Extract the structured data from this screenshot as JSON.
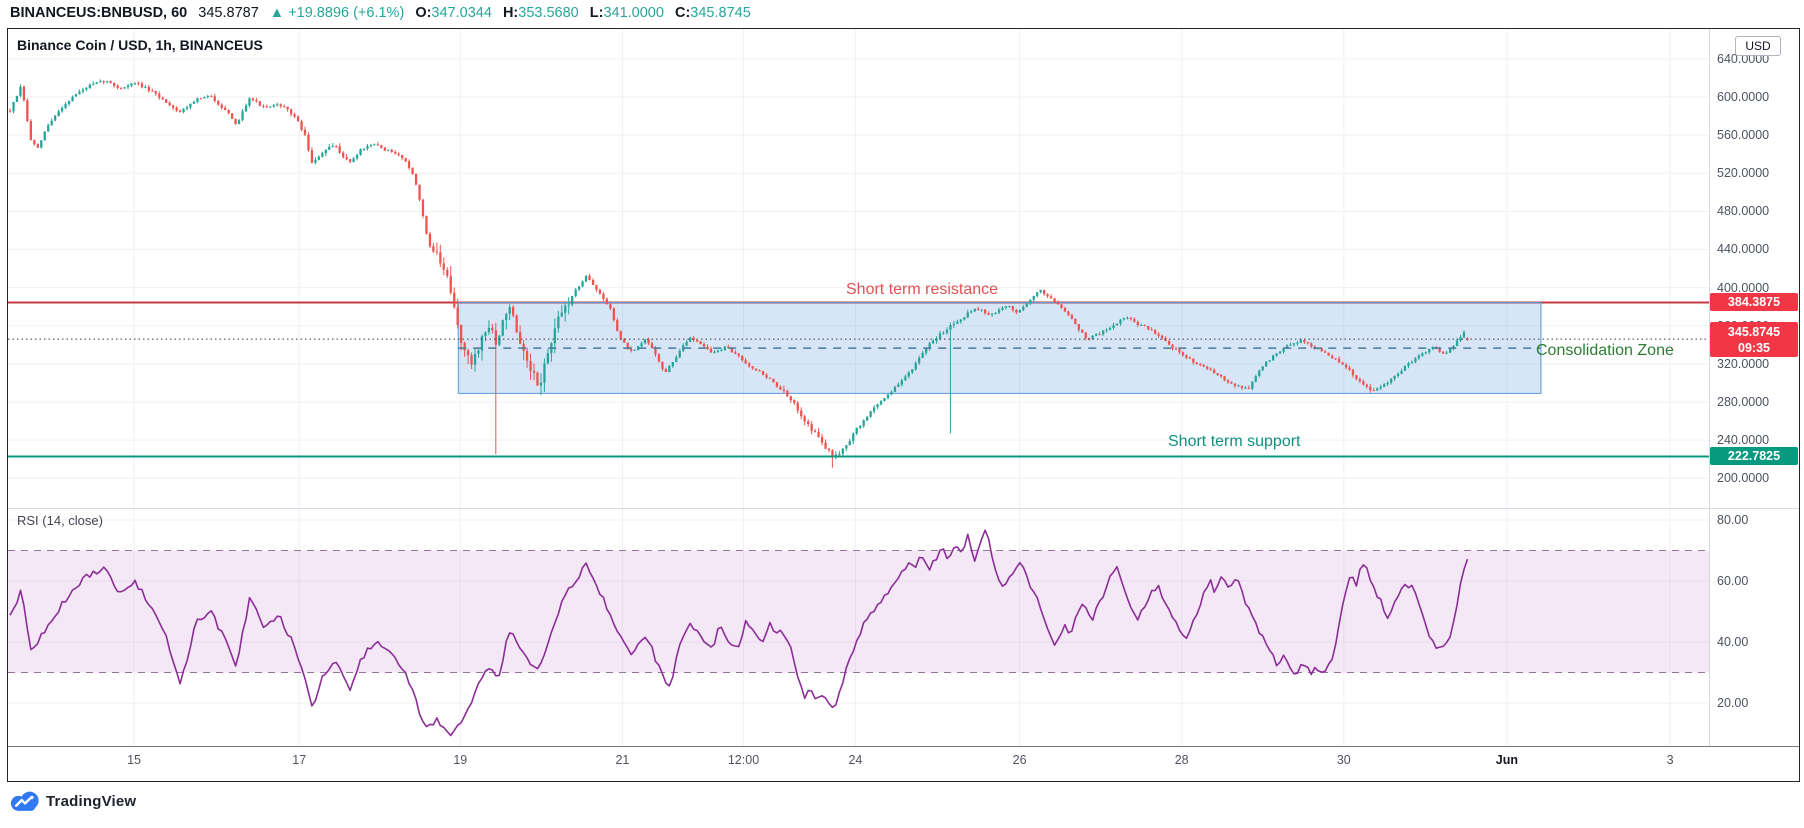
{
  "header": {
    "symbol": "BINANCEUS:BNBUSD, 60",
    "last": "345.8787",
    "arrow_up": "▲",
    "change": "+19.8896 (+6.1%)",
    "o_label": "O:",
    "o": "347.0344",
    "h_label": "H:",
    "h": "353.5680",
    "l_label": "L:",
    "l": "341.0000",
    "c_label": "C:",
    "c": "345.8745"
  },
  "chart": {
    "title": "Binance Coin / USD, 1h, BINANCEUS",
    "currency_button": "USD"
  },
  "rsi_label": "RSI (14, close)",
  "annotations": {
    "resistance": "Short term resistance",
    "zone": "Consolidation Zone",
    "support": "Short term support"
  },
  "badges": {
    "resistance": "384.3875",
    "last_price": "345.8745",
    "countdown": "09:35",
    "support": "222.7825"
  },
  "footer": {
    "logo": "TradingView"
  },
  "colors": {
    "dark": "#131722",
    "teal": "#26a69a",
    "candle_up": "#26a69a",
    "candle_down": "#ef5350",
    "badge_red": "#f23645",
    "badge_teal": "#089981",
    "resistance_line": "#c13a41",
    "support_line": "#089981",
    "resistance_text": "#e05252",
    "support_text": "#0f9182",
    "zone_text": "#2e7d32",
    "zone_fill": "rgba(90,156,222,0.25)",
    "zone_border": "#569bd8",
    "median_dash": "#4a7a9b",
    "last_price_dot": "#3a3e46",
    "rsi_line": "#8c2d98",
    "rsi_band": "rgba(170,80,190,0.13)",
    "rsi_band_border": "#96739b",
    "grid": "#f0f1f5",
    "logo_blue": "#3179f0"
  },
  "chart_data": {
    "type": "candlestick",
    "symbol": "BNBUSD",
    "interval": "1h",
    "price_pane": {
      "ylim": [
        168,
        671
      ]
    },
    "rsi_pane": {
      "ylim": [
        6,
        84
      ]
    },
    "price_axis_ticks": [
      {
        "label": "640.0000",
        "value": 640
      },
      {
        "label": "600.0000",
        "value": 600
      },
      {
        "label": "560.0000",
        "value": 560
      },
      {
        "label": "520.0000",
        "value": 520
      },
      {
        "label": "480.0000",
        "value": 480
      },
      {
        "label": "440.0000",
        "value": 440
      },
      {
        "label": "400.0000",
        "value": 400
      },
      {
        "label": "360.0000",
        "value": 360
      },
      {
        "label": "320.0000",
        "value": 320
      },
      {
        "label": "280.0000",
        "value": 280
      },
      {
        "label": "240.0000",
        "value": 240
      },
      {
        "label": "200.0000",
        "value": 200
      }
    ],
    "rsi_axis_ticks": [
      {
        "label": "80.00",
        "value": 80
      },
      {
        "label": "60.00",
        "value": 60
      },
      {
        "label": "40.00",
        "value": 40
      },
      {
        "label": "20.00",
        "value": 20
      }
    ],
    "time_axis": [
      {
        "label": "15",
        "fx": 0.0741
      },
      {
        "label": "17",
        "fx": 0.1712
      },
      {
        "label": "19",
        "fx": 0.2659
      },
      {
        "label": "21",
        "fx": 0.3612
      },
      {
        "label": "12:00",
        "fx": 0.4324
      },
      {
        "label": "24",
        "fx": 0.4982
      },
      {
        "label": "26",
        "fx": 0.5947
      },
      {
        "label": "28",
        "fx": 0.69
      },
      {
        "label": "30",
        "fx": 0.7853
      },
      {
        "label": "Jun",
        "fx": 0.8812,
        "emphasis": true
      },
      {
        "label": "3",
        "fx": 0.9771
      }
    ],
    "levels": {
      "resistance": 384.3875,
      "support": 222.7825,
      "last_price": 345.8745,
      "zone_median": 336.5
    },
    "zone": {
      "fx0": 0.2647,
      "fx1": 0.9012,
      "top": 384.3875,
      "bottom": 289
    },
    "candles": {
      "count": 421,
      "first_fx": 0.0012,
      "last_fx": 0.858,
      "base_vol": 4.5,
      "last_open": 347.0344,
      "last_close": 345.8745
    },
    "vol_regions": [
      [
        0.25,
        0.33,
        20
      ],
      [
        0.172,
        0.2,
        7
      ],
      [
        0.455,
        0.5,
        8
      ],
      [
        0.545,
        0.565,
        6
      ],
      [
        0.78,
        0.812,
        5
      ]
    ],
    "spikes": [
      {
        "fx": 0.2875,
        "low": 225
      },
      {
        "fx": 0.4845,
        "low": 211
      },
      {
        "fx": 0.555,
        "low": 247
      }
    ],
    "price_path": [
      [
        0.001,
        585
      ],
      [
        0.008,
        612
      ],
      [
        0.013,
        556
      ],
      [
        0.018,
        545
      ],
      [
        0.022,
        566
      ],
      [
        0.031,
        588
      ],
      [
        0.039,
        602
      ],
      [
        0.048,
        612
      ],
      [
        0.057,
        617
      ],
      [
        0.066,
        609
      ],
      [
        0.075,
        615
      ],
      [
        0.084,
        606
      ],
      [
        0.092,
        596
      ],
      [
        0.101,
        584
      ],
      [
        0.11,
        597
      ],
      [
        0.119,
        601
      ],
      [
        0.128,
        586
      ],
      [
        0.134,
        570
      ],
      [
        0.142,
        600
      ],
      [
        0.151,
        588
      ],
      [
        0.16,
        592
      ],
      [
        0.169,
        579
      ],
      [
        0.175,
        558
      ],
      [
        0.179,
        528
      ],
      [
        0.184,
        541
      ],
      [
        0.192,
        549
      ],
      [
        0.201,
        531
      ],
      [
        0.208,
        546
      ],
      [
        0.216,
        550
      ],
      [
        0.225,
        542
      ],
      [
        0.232,
        537
      ],
      [
        0.238,
        520
      ],
      [
        0.242,
        492
      ],
      [
        0.247,
        448
      ],
      [
        0.252,
        432
      ],
      [
        0.256,
        420
      ],
      [
        0.259,
        402
      ],
      [
        0.263,
        372
      ],
      [
        0.266,
        348
      ],
      [
        0.269,
        330
      ],
      [
        0.272,
        318
      ],
      [
        0.276,
        336
      ],
      [
        0.28,
        352
      ],
      [
        0.284,
        362
      ],
      [
        0.2875,
        332
      ],
      [
        0.291,
        368
      ],
      [
        0.294,
        382
      ],
      [
        0.298,
        360
      ],
      [
        0.301,
        336
      ],
      [
        0.307,
        312
      ],
      [
        0.312,
        296
      ],
      [
        0.316,
        322
      ],
      [
        0.32,
        346
      ],
      [
        0.325,
        372
      ],
      [
        0.331,
        390
      ],
      [
        0.336,
        402
      ],
      [
        0.34,
        414
      ],
      [
        0.345,
        400
      ],
      [
        0.35,
        388
      ],
      [
        0.354,
        378
      ],
      [
        0.36,
        346
      ],
      [
        0.367,
        331
      ],
      [
        0.375,
        346
      ],
      [
        0.381,
        330
      ],
      [
        0.386,
        309
      ],
      [
        0.394,
        331
      ],
      [
        0.401,
        348
      ],
      [
        0.407,
        342
      ],
      [
        0.414,
        331
      ],
      [
        0.422,
        337
      ],
      [
        0.429,
        329
      ],
      [
        0.436,
        318
      ],
      [
        0.444,
        309
      ],
      [
        0.451,
        299
      ],
      [
        0.459,
        284
      ],
      [
        0.466,
        268
      ],
      [
        0.473,
        250
      ],
      [
        0.479,
        237
      ],
      [
        0.4845,
        222
      ],
      [
        0.489,
        228
      ],
      [
        0.495,
        241
      ],
      [
        0.502,
        258
      ],
      [
        0.51,
        276
      ],
      [
        0.518,
        289
      ],
      [
        0.525,
        301
      ],
      [
        0.534,
        321
      ],
      [
        0.542,
        341
      ],
      [
        0.551,
        356
      ],
      [
        0.56,
        368
      ],
      [
        0.569,
        379
      ],
      [
        0.578,
        371
      ],
      [
        0.588,
        382
      ],
      [
        0.593,
        373
      ],
      [
        0.6,
        386
      ],
      [
        0.607,
        397
      ],
      [
        0.613,
        389
      ],
      [
        0.62,
        379
      ],
      [
        0.627,
        363
      ],
      [
        0.634,
        346
      ],
      [
        0.643,
        353
      ],
      [
        0.65,
        361
      ],
      [
        0.657,
        369
      ],
      [
        0.664,
        362
      ],
      [
        0.67,
        357
      ],
      [
        0.677,
        350
      ],
      [
        0.684,
        338
      ],
      [
        0.691,
        328
      ],
      [
        0.7,
        320
      ],
      [
        0.71,
        309
      ],
      [
        0.72,
        299
      ],
      [
        0.729,
        293
      ],
      [
        0.736,
        315
      ],
      [
        0.745,
        330
      ],
      [
        0.752,
        338
      ],
      [
        0.76,
        345
      ],
      [
        0.768,
        337
      ],
      [
        0.776,
        330
      ],
      [
        0.782,
        322
      ],
      [
        0.788,
        314
      ],
      [
        0.795,
        300
      ],
      [
        0.802,
        292
      ],
      [
        0.808,
        296
      ],
      [
        0.815,
        306
      ],
      [
        0.822,
        318
      ],
      [
        0.83,
        330
      ],
      [
        0.838,
        338
      ],
      [
        0.845,
        330
      ],
      [
        0.851,
        342
      ],
      [
        0.856,
        354
      ],
      [
        0.858,
        346
      ]
    ],
    "rsi": {
      "band": [
        30,
        70
      ],
      "path": [
        [
          0.001,
          48
        ],
        [
          0.008,
          57
        ],
        [
          0.013,
          38
        ],
        [
          0.022,
          43
        ],
        [
          0.031,
          52
        ],
        [
          0.039,
          58
        ],
        [
          0.048,
          62
        ],
        [
          0.057,
          64
        ],
        [
          0.066,
          56
        ],
        [
          0.075,
          60
        ],
        [
          0.084,
          51
        ],
        [
          0.092,
          43
        ],
        [
          0.101,
          27
        ],
        [
          0.106,
          36
        ],
        [
          0.11,
          46
        ],
        [
          0.119,
          50
        ],
        [
          0.128,
          40
        ],
        [
          0.134,
          31
        ],
        [
          0.142,
          54
        ],
        [
          0.151,
          45
        ],
        [
          0.16,
          48
        ],
        [
          0.169,
          38
        ],
        [
          0.175,
          28
        ],
        [
          0.179,
          18
        ],
        [
          0.184,
          28
        ],
        [
          0.192,
          34
        ],
        [
          0.201,
          24
        ],
        [
          0.208,
          35
        ],
        [
          0.216,
          40
        ],
        [
          0.225,
          36
        ],
        [
          0.232,
          32
        ],
        [
          0.238,
          24
        ],
        [
          0.242,
          16
        ],
        [
          0.247,
          12
        ],
        [
          0.252,
          15
        ],
        [
          0.256,
          12
        ],
        [
          0.261,
          10
        ],
        [
          0.266,
          14
        ],
        [
          0.272,
          19
        ],
        [
          0.278,
          28
        ],
        [
          0.284,
          33
        ],
        [
          0.288,
          26
        ],
        [
          0.292,
          38
        ],
        [
          0.296,
          44
        ],
        [
          0.301,
          38
        ],
        [
          0.307,
          33
        ],
        [
          0.312,
          30
        ],
        [
          0.316,
          38
        ],
        [
          0.32,
          45
        ],
        [
          0.325,
          52
        ],
        [
          0.331,
          58
        ],
        [
          0.336,
          62
        ],
        [
          0.34,
          66
        ],
        [
          0.345,
          59
        ],
        [
          0.35,
          54
        ],
        [
          0.354,
          49
        ],
        [
          0.36,
          42
        ],
        [
          0.367,
          36
        ],
        [
          0.375,
          43
        ],
        [
          0.381,
          34
        ],
        [
          0.386,
          28
        ],
        [
          0.39,
          25
        ],
        [
          0.394,
          38
        ],
        [
          0.401,
          46
        ],
        [
          0.407,
          42
        ],
        [
          0.414,
          38
        ],
        [
          0.418,
          45
        ],
        [
          0.422,
          42
        ],
        [
          0.429,
          37
        ],
        [
          0.434,
          47
        ],
        [
          0.438,
          44
        ],
        [
          0.444,
          40
        ],
        [
          0.448,
          46
        ],
        [
          0.451,
          42
        ],
        [
          0.455,
          44
        ],
        [
          0.459,
          40
        ],
        [
          0.463,
          31
        ],
        [
          0.466,
          25
        ],
        [
          0.469,
          22
        ],
        [
          0.4715,
          27
        ],
        [
          0.474,
          21.5
        ],
        [
          0.478,
          23
        ],
        [
          0.481,
          22
        ],
        [
          0.4845,
          17.5
        ],
        [
          0.487,
          20
        ],
        [
          0.491,
          28
        ],
        [
          0.495,
          34
        ],
        [
          0.499,
          40
        ],
        [
          0.503,
          46
        ],
        [
          0.508,
          50
        ],
        [
          0.513,
          53
        ],
        [
          0.517,
          56
        ],
        [
          0.521,
          60
        ],
        [
          0.525,
          63
        ],
        [
          0.529,
          66
        ],
        [
          0.533,
          64
        ],
        [
          0.537,
          69
        ],
        [
          0.541,
          64
        ],
        [
          0.545,
          67
        ],
        [
          0.549,
          71
        ],
        [
          0.553,
          66
        ],
        [
          0.557,
          73
        ],
        [
          0.561,
          68
        ],
        [
          0.5645,
          75
        ],
        [
          0.568,
          67
        ],
        [
          0.571,
          70
        ],
        [
          0.5745,
          77.5
        ],
        [
          0.578,
          70
        ],
        [
          0.581,
          63
        ],
        [
          0.584,
          58
        ],
        [
          0.588,
          60
        ],
        [
          0.592,
          63
        ],
        [
          0.596,
          66
        ],
        [
          0.6,
          60
        ],
        [
          0.604,
          55
        ],
        [
          0.608,
          50
        ],
        [
          0.612,
          44
        ],
        [
          0.6165,
          38.5
        ],
        [
          0.621,
          46
        ],
        [
          0.625,
          42
        ],
        [
          0.629,
          50
        ],
        [
          0.633,
          53
        ],
        [
          0.637,
          47
        ],
        [
          0.641,
          52
        ],
        [
          0.645,
          57
        ],
        [
          0.649,
          62
        ],
        [
          0.6525,
          64
        ],
        [
          0.656,
          57
        ],
        [
          0.66,
          52
        ],
        [
          0.664,
          47
        ],
        [
          0.668,
          52
        ],
        [
          0.672,
          56
        ],
        [
          0.676,
          58
        ],
        [
          0.68,
          54
        ],
        [
          0.684,
          49
        ],
        [
          0.688,
          45
        ],
        [
          0.692,
          41
        ],
        [
          0.695,
          45
        ],
        [
          0.699,
          50
        ],
        [
          0.703,
          56
        ],
        [
          0.707,
          60
        ],
        [
          0.71,
          56
        ],
        [
          0.714,
          62
        ],
        [
          0.718,
          58
        ],
        [
          0.722,
          61
        ],
        [
          0.726,
          55
        ],
        [
          0.73,
          50
        ],
        [
          0.734,
          45
        ],
        [
          0.738,
          41
        ],
        [
          0.742,
          37
        ],
        [
          0.746,
          33
        ],
        [
          0.75,
          35
        ],
        [
          0.754,
          31
        ],
        [
          0.758,
          30
        ],
        [
          0.762,
          33
        ],
        [
          0.766,
          30
        ],
        [
          0.77,
          31
        ],
        [
          0.774,
          30
        ],
        [
          0.778,
          34
        ],
        [
          0.782,
          44
        ],
        [
          0.786,
          55
        ],
        [
          0.789,
          62
        ],
        [
          0.7925,
          58.5
        ],
        [
          0.796,
          66
        ],
        [
          0.799,
          64
        ],
        [
          0.803,
          57
        ],
        [
          0.807,
          54
        ],
        [
          0.811,
          47
        ],
        [
          0.815,
          53
        ],
        [
          0.819,
          57
        ],
        [
          0.823,
          59
        ],
        [
          0.827,
          57
        ],
        [
          0.831,
          50
        ],
        [
          0.835,
          42
        ],
        [
          0.839,
          39
        ],
        [
          0.843,
          38.5
        ],
        [
          0.847,
          40
        ],
        [
          0.851,
          48
        ],
        [
          0.854,
          59
        ],
        [
          0.857,
          66
        ],
        [
          0.86,
          68
        ]
      ]
    }
  }
}
